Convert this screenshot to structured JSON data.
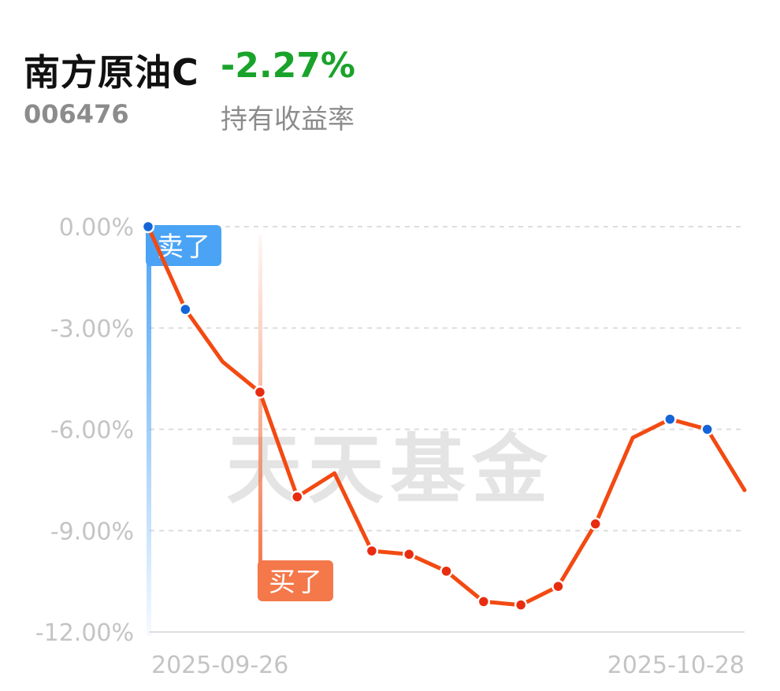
{
  "header": {
    "fund_name": "南方原油C",
    "return_value": "-2.27%",
    "fund_code": "006476",
    "return_label": "持有收益率"
  },
  "colors": {
    "line": "#f24a12",
    "return_negative": "#1aa32b",
    "sell_marker": "#4aa3f5",
    "buy_marker": "#f4784a",
    "sell_point": "#1565d8",
    "buy_point": "#e82c10",
    "grid": "#dddddd",
    "tick_text": "#c4c4c4",
    "watermark": "#e4e4e4"
  },
  "chart_data": {
    "type": "line",
    "y_unit": "%",
    "ylim": [
      -12,
      0
    ],
    "y_ticks": [
      0,
      -3,
      -6,
      -9,
      -12
    ],
    "y_tick_labels": [
      "0.00%",
      "-3.00%",
      "-6.00%",
      "-9.00%",
      "-12.00%"
    ],
    "x_tick_labels": [
      "2025-09-26",
      "2025-10-28"
    ],
    "grid": true,
    "watermark": "天天基金",
    "series": [
      {
        "values": [
          0.0,
          -2.45,
          -4.0,
          -4.9,
          -8.0,
          -7.3,
          -9.6,
          -9.7,
          -10.2,
          -11.1,
          -11.2,
          -10.65,
          -8.8,
          -6.25,
          -5.7,
          -6.0,
          -7.8
        ],
        "points": [
          {
            "index": 0,
            "kind": "sell"
          },
          {
            "index": 1,
            "kind": "sell"
          },
          {
            "index": 3,
            "kind": "buy"
          },
          {
            "index": 4,
            "kind": "buy"
          },
          {
            "index": 6,
            "kind": "buy"
          },
          {
            "index": 7,
            "kind": "buy"
          },
          {
            "index": 8,
            "kind": "buy"
          },
          {
            "index": 9,
            "kind": "buy"
          },
          {
            "index": 10,
            "kind": "buy"
          },
          {
            "index": 11,
            "kind": "buy"
          },
          {
            "index": 12,
            "kind": "buy"
          },
          {
            "index": 14,
            "kind": "sell"
          },
          {
            "index": 15,
            "kind": "sell"
          }
        ]
      }
    ],
    "markers": [
      {
        "label": "卖了",
        "index": 0,
        "kind": "sell"
      },
      {
        "label": "买了",
        "index": 3,
        "kind": "buy"
      }
    ]
  }
}
